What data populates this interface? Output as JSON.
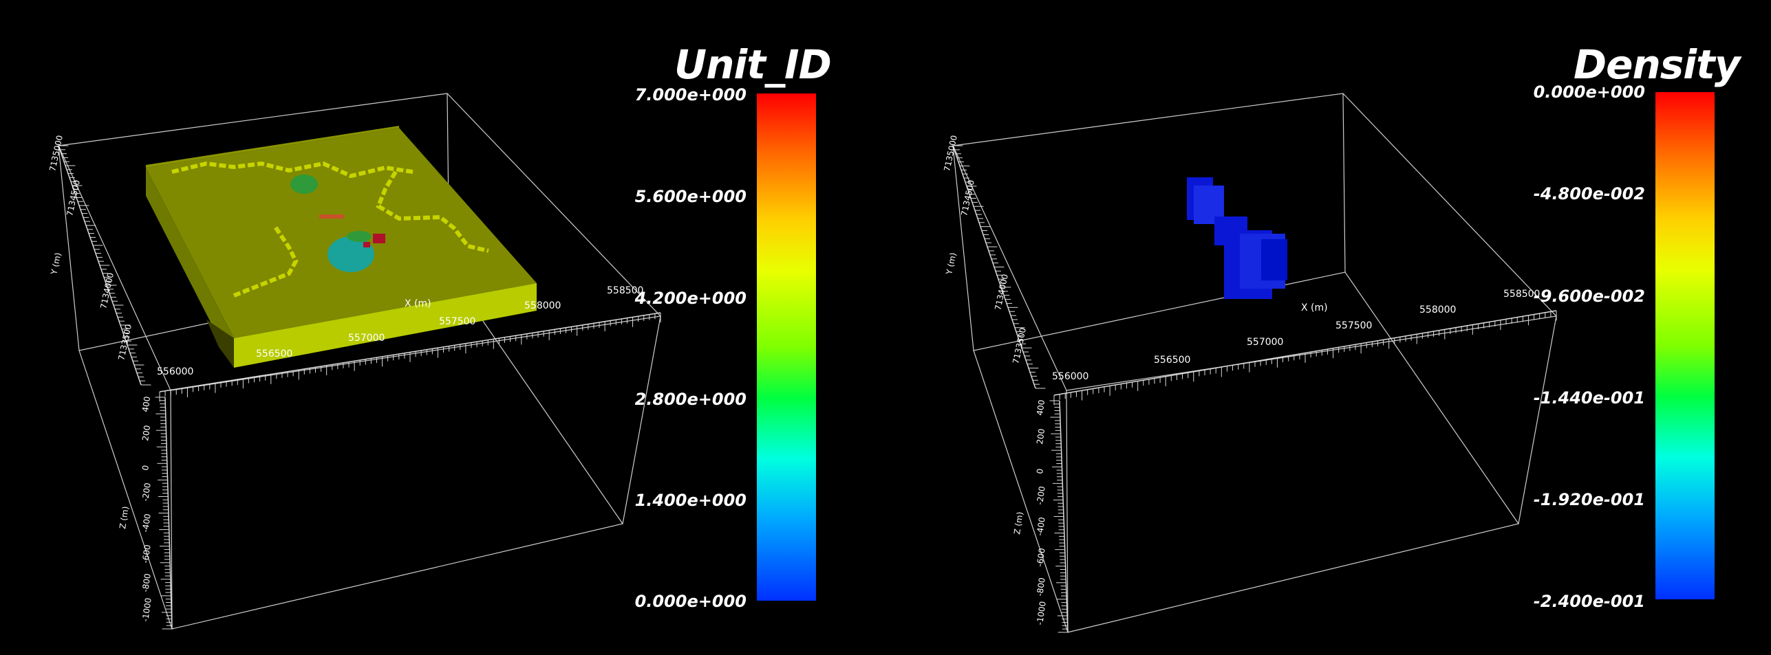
{
  "left_view": {
    "scalar_title": "Unit_ID",
    "colorbar_labels": [
      "7.000e+000",
      "5.600e+000",
      "4.200e+000",
      "2.800e+000",
      "1.400e+000",
      "0.000e+000"
    ],
    "x_axis": {
      "title": "X (m)",
      "ticks": [
        "556000",
        "556500",
        "557000",
        "557500",
        "558000",
        "558500"
      ]
    },
    "y_axis": {
      "title": "Y (m)",
      "ticks": [
        "7133500",
        "7134000",
        "7134500",
        "7135000"
      ]
    },
    "z_axis": {
      "title": "Z (m)",
      "ticks": [
        "400",
        "200",
        "0",
        "-200",
        "-400",
        "-600",
        "-800",
        "-1000"
      ]
    }
  },
  "right_view": {
    "scalar_title": "Density",
    "colorbar_labels": [
      "0.000e+000",
      "-4.800e-002",
      "-9.600e-002",
      "-1.440e-001",
      "-1.920e-001",
      "-2.400e-001"
    ],
    "x_axis": {
      "title": "X (m)",
      "ticks": [
        "556000",
        "556500",
        "557000",
        "557500",
        "558000",
        "558500"
      ]
    },
    "y_axis": {
      "title": "Y (m)",
      "ticks": [
        "7133500",
        "7134000",
        "7134500",
        "7135000"
      ]
    },
    "z_axis": {
      "title": "Z (m)",
      "ticks": [
        "400",
        "200",
        "0",
        "-200",
        "-400",
        "-600",
        "-800",
        "-1000"
      ]
    }
  },
  "colors": {
    "background": "#000000",
    "model_top": "#7f8a00",
    "model_side": "#b8cc00",
    "unit_green": "#2e9a3a",
    "unit_teal": "#1aa39b",
    "unit_red": "#b0102a",
    "unit_orange": "#c8522a",
    "density_body": "#0a18d6"
  }
}
